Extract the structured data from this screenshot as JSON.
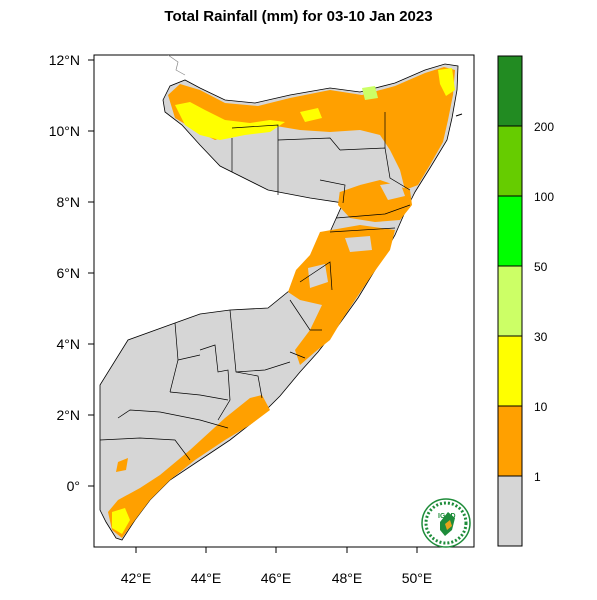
{
  "title": "Total Rainfall (mm) for 03-10 Jan 2023",
  "lat_labels": [
    "12°N",
    "10°N",
    "8°N",
    "6°N",
    "4°N",
    "2°N",
    "0°"
  ],
  "lon_labels": [
    "42°E",
    "44°E",
    "46°E",
    "48°E",
    "50°E"
  ],
  "colorbar": {
    "labels": [
      "1",
      "10",
      "30",
      "50",
      "100",
      "200"
    ],
    "colors": [
      "#d6d6d6",
      "#ffa000",
      "#ffff00",
      "#ccff66",
      "#00ff00",
      "#66cc00",
      "#228b22"
    ]
  },
  "logo": {
    "text": "IGAD",
    "colors": [
      "#1e8c3a",
      "#e8a31a"
    ]
  }
}
